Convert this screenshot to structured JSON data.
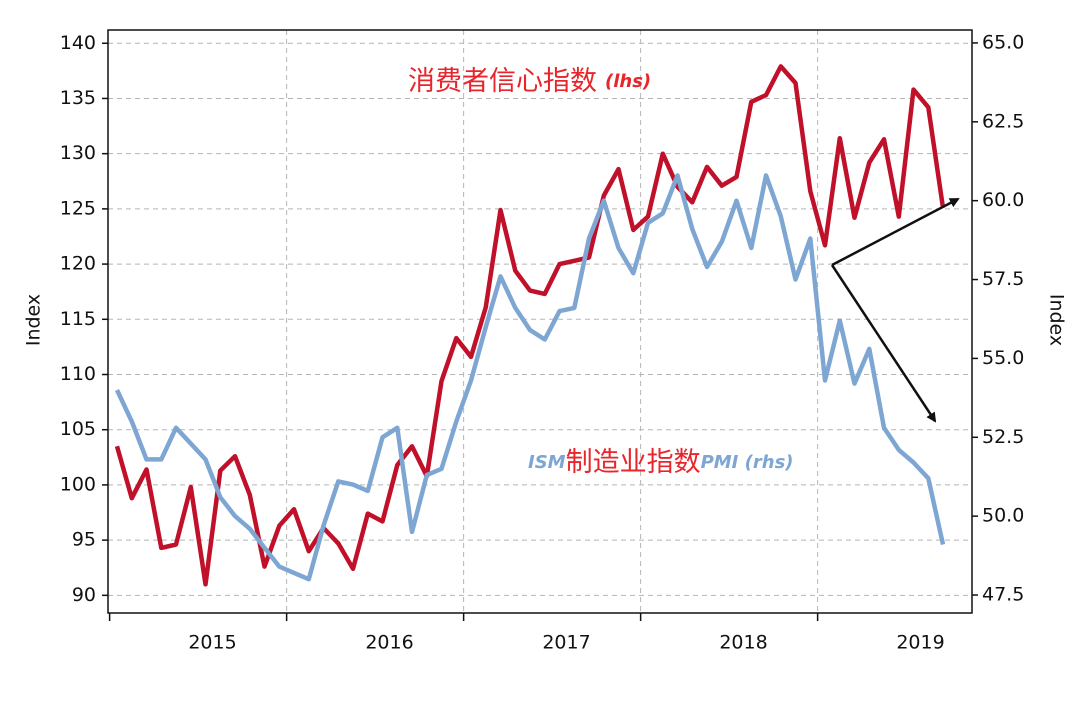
{
  "chart_data": {
    "type": "line",
    "y_label": "Index",
    "y2_label": "Index",
    "categories": [
      null,
      null,
      null,
      null,
      null,
      null,
      "2015",
      null,
      null,
      null,
      null,
      null,
      null,
      null,
      null,
      null,
      null,
      null,
      "2016",
      null,
      null,
      null,
      null,
      null,
      null,
      null,
      null,
      null,
      null,
      null,
      "2017",
      null,
      null,
      null,
      null,
      null,
      null,
      null,
      null,
      null,
      null,
      null,
      "2018",
      null,
      null,
      null,
      null,
      null,
      null,
      null,
      null,
      null,
      null,
      null,
      "2019",
      null,
      null
    ],
    "series": [
      {
        "name": "消费者信心指数 (lhs)",
        "color": "#c0102a",
        "axis": "y",
        "values": [
          103.5,
          98.8,
          101.4,
          94.3,
          94.6,
          99.8,
          91.0,
          101.3,
          102.6,
          99.1,
          92.6,
          96.3,
          97.8,
          94.0,
          96.1,
          94.7,
          92.4,
          97.4,
          96.7,
          101.8,
          103.5,
          100.8,
          109.4,
          113.3,
          111.6,
          116.1,
          124.9,
          119.4,
          117.6,
          117.3,
          120.0,
          120.3,
          120.6,
          126.2,
          128.6,
          123.1,
          124.3,
          130.0,
          127.0,
          125.6,
          128.8,
          127.1,
          127.9,
          134.7,
          135.3,
          137.9,
          136.4,
          126.6,
          121.7,
          131.4,
          124.2,
          129.2,
          131.3,
          124.3,
          135.8,
          134.2,
          125.1
        ]
      },
      {
        "name": "ISM制造业指数PMI (rhs)",
        "color": "#7ea6d3",
        "axis": "y2",
        "values": [
          54.0,
          53.0,
          51.8,
          51.8,
          52.8,
          52.3,
          51.8,
          50.6,
          50.0,
          49.6,
          49.0,
          48.4,
          48.2,
          48.0,
          49.7,
          51.1,
          51.0,
          50.8,
          52.5,
          52.8,
          49.5,
          51.3,
          51.5,
          53.0,
          54.3,
          56.0,
          57.6,
          56.6,
          55.9,
          55.6,
          56.5,
          56.6,
          58.8,
          60.0,
          58.5,
          57.7,
          59.3,
          59.6,
          60.8,
          59.1,
          57.9,
          58.7,
          60.0,
          58.5,
          60.8,
          59.5,
          57.5,
          58.8,
          54.3,
          56.2,
          54.2,
          55.3,
          52.8,
          52.1,
          51.7,
          51.2,
          49.1
        ]
      }
    ],
    "annotations": [
      {
        "parts": [
          {
            "text": "消费者信心指数",
            "color": "#e8252a"
          },
          {
            "text": "(lhs)",
            "color": "#e8252a",
            "italic": true
          }
        ]
      },
      {
        "parts": [
          {
            "text": "ISM",
            "color": "#7ea6d3",
            "italic": true
          },
          {
            "text": "制造业指数",
            "color": "#e8252a"
          },
          {
            "text": "PMI (rhs)",
            "color": "#7ea6d3",
            "italic": true
          }
        ]
      }
    ],
    "ylim": [
      88.4,
      141.2
    ],
    "yticks": [
      90,
      95,
      100,
      105,
      110,
      115,
      120,
      125,
      130,
      135,
      140
    ],
    "y2lim": [
      46.93,
      65.41
    ],
    "y2ticks": [
      {
        "value": 47.5,
        "label": "47.5"
      },
      {
        "value": 50,
        "label": "50.0"
      },
      {
        "value": 52.5,
        "label": "52.5"
      },
      {
        "value": 55,
        "label": "55.0"
      },
      {
        "value": 57.5,
        "label": "57.5"
      },
      {
        "value": 60,
        "label": "60.0"
      },
      {
        "value": 62.5,
        "label": "62.5"
      },
      {
        "value": 65,
        "label": "65.0"
      }
    ],
    "grid": true
  }
}
